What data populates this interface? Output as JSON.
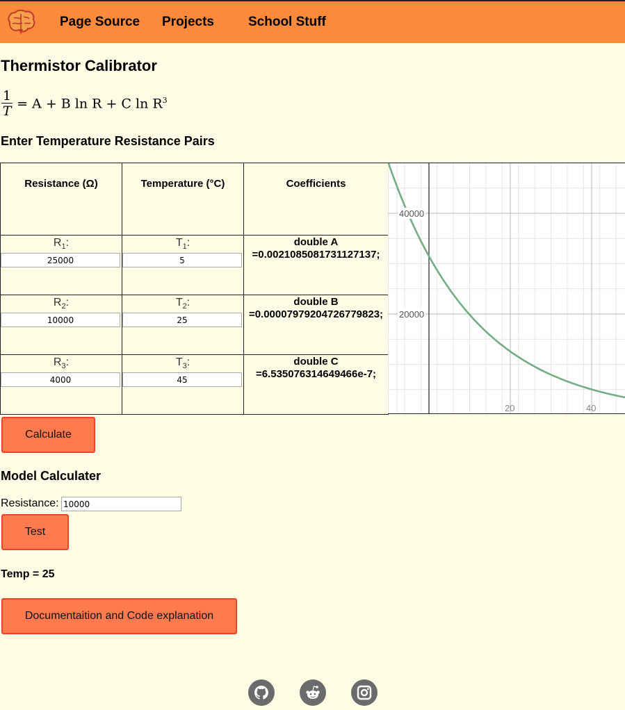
{
  "nav": {
    "logo_icon": "brain-icon",
    "links": [
      "Page Source",
      "Projects",
      "School Stuff"
    ]
  },
  "page_title": "Thermistor Calibrator",
  "formula": {
    "numerator": "1",
    "denominator": "T",
    "rhs": "= A + B ln R + C ln R"
  },
  "section_pairs": "Enter Temperature Resistance Pairs",
  "table": {
    "headers": [
      "Resistance (Ω)",
      "Temperature (°C)",
      "Coefficients"
    ],
    "rows": [
      {
        "r_label": "R",
        "r_sub": "1",
        "r_value": "25000",
        "t_label": "T",
        "t_sub": "1",
        "t_value": "5",
        "coef_name": "double A",
        "coef_value": "=0.0021085081731127137;"
      },
      {
        "r_label": "R",
        "r_sub": "2",
        "r_value": "10000",
        "t_label": "T",
        "t_sub": "2",
        "t_value": "25",
        "coef_name": "double B",
        "coef_value": "=0.00007979204726779823;"
      },
      {
        "r_label": "R",
        "r_sub": "3",
        "r_value": "4000",
        "t_label": "T",
        "t_sub": "3",
        "t_value": "45",
        "coef_name": "double C",
        "coef_value": "=6.535076314649466e-7;"
      }
    ]
  },
  "graph": {
    "y_ticks": [
      "40000",
      "20000"
    ],
    "x_ticks": [
      "20",
      "40"
    ],
    "curve_color": "#74ad84"
  },
  "calculate_label": "Calculate",
  "section_model": "Model Calculater",
  "resistance_label": "Resistance:",
  "resistance_value": "10000",
  "test_label": "Test",
  "temp_result": "Temp = 25",
  "docs_label": "Documentaition and Code explanation",
  "social": [
    "github-icon",
    "reddit-icon",
    "instagram-icon"
  ],
  "colors": {
    "nav_bg": "#fb8a3c",
    "page_bg": "#fffce6",
    "button_bg": "#ff7a4f",
    "button_border": "#e8452b",
    "social_bg": "#6b6b6b"
  }
}
